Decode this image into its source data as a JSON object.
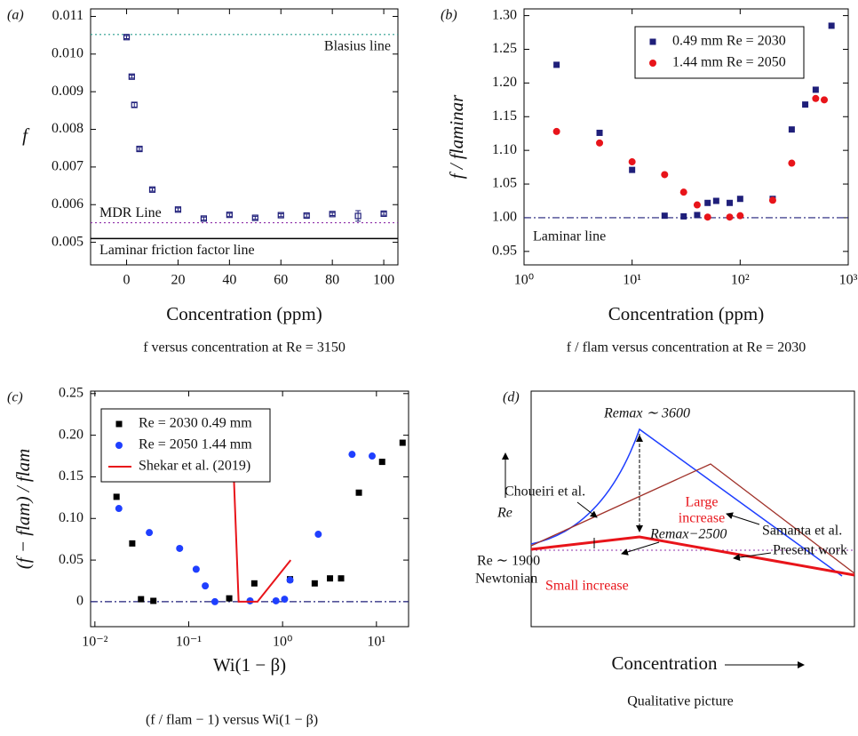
{
  "chart_data": [
    {
      "type": "scatter",
      "panel_label": "(a)",
      "xlabel": "Concentration (ppm)",
      "ylabel": "f",
      "caption": "f versus concentration at Re = 3150",
      "x_scale": "linear",
      "y_scale": "linear",
      "xlim": [
        -14,
        105.5
      ],
      "xticks": [
        0,
        20,
        40,
        60,
        80,
        100
      ],
      "ylim": [
        0.0044,
        0.0112
      ],
      "yticks": [
        {
          "value": 0.005,
          "label": "0.005"
        },
        {
          "value": 0.006,
          "label": "0.006"
        },
        {
          "value": 0.007,
          "label": "0.007"
        },
        {
          "value": 0.008,
          "label": "0.008"
        },
        {
          "value": 0.009,
          "label": "0.009"
        },
        {
          "value": 0.01,
          "label": "0.010"
        },
        {
          "value": 0.011,
          "label": "0.011"
        }
      ],
      "series": [
        {
          "marker": "open-square",
          "color": "#1f1f7a",
          "x": [
            0,
            2,
            3,
            5,
            10,
            20,
            30,
            40,
            50,
            60,
            70,
            80,
            90,
            100
          ],
          "values": [
            0.01045,
            0.0094,
            0.00865,
            0.00748,
            0.0064,
            0.00587,
            0.00563,
            0.00573,
            0.00565,
            0.00572,
            0.00571,
            0.00575,
            0.0057,
            0.00576
          ],
          "errors": [
            4e-05,
            4e-05,
            6e-05,
            4e-05,
            4e-05,
            4e-05,
            4e-05,
            4e-05,
            4e-05,
            4e-05,
            4e-05,
            4e-05,
            0.00014,
            4e-05
          ]
        }
      ],
      "reference_lines": [
        {
          "label": "Blasius line",
          "value": 0.01052,
          "color": "#2a9d8f",
          "style": "dotted"
        },
        {
          "label": "MDR Line",
          "value": 0.00552,
          "color": "#8e2fa8",
          "style": "dotted"
        },
        {
          "label": "Laminar friction factor line",
          "value": 0.0051,
          "color": "#000000",
          "style": "solid"
        }
      ]
    },
    {
      "type": "scatter",
      "panel_label": "(b)",
      "xlabel": "Concentration (ppm)",
      "ylabel": "f / flaminar",
      "caption": "f / flam versus concentration at Re = 2030",
      "x_scale": "log",
      "y_scale": "linear",
      "xlim": [
        1,
        1000
      ],
      "xticks": [
        {
          "value": 1,
          "label": "10⁰"
        },
        {
          "value": 10,
          "label": "10¹"
        },
        {
          "value": 100,
          "label": "10²"
        },
        {
          "value": 1000,
          "label": "10³"
        }
      ],
      "ylim": [
        0.93,
        1.31
      ],
      "yticks": [
        0.95,
        {
          "value": 1.0,
          "label": "1.00"
        },
        1.05,
        {
          "value": 1.1,
          "label": "1.10"
        },
        1.15,
        {
          "value": 1.2,
          "label": "1.20"
        },
        1.25,
        {
          "value": 1.3,
          "label": "1.30"
        }
      ],
      "legend": "upper right",
      "series": [
        {
          "name": "0.49 mm Re = 2030",
          "marker": "square",
          "color": "#1f1f7a",
          "x": [
            2,
            5,
            10,
            20,
            30,
            40,
            50,
            60,
            80,
            100,
            200,
            300,
            400,
            500,
            700
          ],
          "values": [
            1.227,
            1.126,
            1.071,
            1.003,
            1.002,
            1.004,
            1.022,
            1.025,
            1.022,
            1.028,
            1.028,
            1.131,
            1.168,
            1.19,
            1.285
          ]
        },
        {
          "name": "1.44 mm Re = 2050",
          "marker": "circle",
          "color": "#e8141a",
          "x": [
            2,
            5,
            10,
            20,
            30,
            40,
            50,
            80,
            100,
            200,
            300,
            500,
            600
          ],
          "values": [
            1.128,
            1.111,
            1.083,
            1.064,
            1.038,
            1.019,
            1.001,
            1.001,
            1.003,
            1.026,
            1.081,
            1.177,
            1.175
          ]
        }
      ],
      "reference_lines": [
        {
          "label": "Laminar line",
          "value": 1.0,
          "color": "#1f1f7a",
          "style": "dashdot"
        }
      ]
    },
    {
      "type": "scatter",
      "panel_label": "(c)",
      "xlabel": "Wi(1 − β)",
      "ylabel": "(f − flam) / flam",
      "caption": "(f / flam − 1) versus Wi(1 − β)",
      "x_scale": "log",
      "y_scale": "linear",
      "xlim": [
        0.009,
        22
      ],
      "xticks": [
        {
          "value": 0.01,
          "label": "10⁻²"
        },
        {
          "value": 0.1,
          "label": "10⁻¹"
        },
        {
          "value": 1,
          "label": "10⁰"
        },
        {
          "value": 10,
          "label": "10¹"
        }
      ],
      "ylim": [
        -0.03,
        0.253
      ],
      "yticks": [
        0,
        0.05,
        {
          "value": 0.1,
          "label": "0.10"
        },
        0.15,
        {
          "value": 0.2,
          "label": "0.20"
        },
        0.25
      ],
      "legend": "upper left",
      "series": [
        {
          "name": "Re = 2030 0.49 mm",
          "marker": "square",
          "color": "#000000",
          "x": [
            0.017,
            0.025,
            0.031,
            0.042,
            0.27,
            0.5,
            1.2,
            2.2,
            3.2,
            4.2,
            6.5,
            11.5,
            19
          ],
          "values": [
            0.126,
            0.07,
            0.003,
            0.001,
            0.004,
            0.022,
            0.027,
            0.022,
            0.028,
            0.028,
            0.131,
            0.168,
            0.191
          ]
        },
        {
          "name": "Re = 2050 1.44 mm",
          "marker": "circle",
          "color": "#1f3fff",
          "x": [
            0.018,
            0.038,
            0.08,
            0.12,
            0.15,
            0.19,
            0.45,
            0.85,
            1.05,
            1.2,
            2.4,
            5.5,
            9
          ],
          "values": [
            0.112,
            0.083,
            0.064,
            0.039,
            0.019,
            0.0,
            0.001,
            0.001,
            0.003,
            0.026,
            0.081,
            0.177,
            0.175
          ]
        },
        {
          "name": "Shekar et al. (2019)",
          "marker": "line",
          "color": "#e8141a",
          "x": [
            0.3,
            0.34,
            0.54,
            1.22
          ],
          "values": [
            0.16,
            0.0,
            0.0,
            0.05
          ]
        }
      ],
      "reference_lines": [
        {
          "value": 0,
          "color": "#1f1f7a",
          "style": "dashdot"
        }
      ]
    }
  ],
  "qualitative": {
    "panel_label": "(d)",
    "re_max_high": "Remax ∼ 3600",
    "choueiri": "Choueiri et al.",
    "large_increase": [
      "Large",
      "increase"
    ],
    "re_max_low": "Remax−2500",
    "samanta": "Samanta et al.",
    "present_work": "Present work",
    "re_newtonian": "Re ∼ 1900",
    "newtonian": "Newtonian",
    "small_increase": "Small increase",
    "y_label": "Re",
    "x_label": "Concentration",
    "caption": "Qualitative picture"
  }
}
